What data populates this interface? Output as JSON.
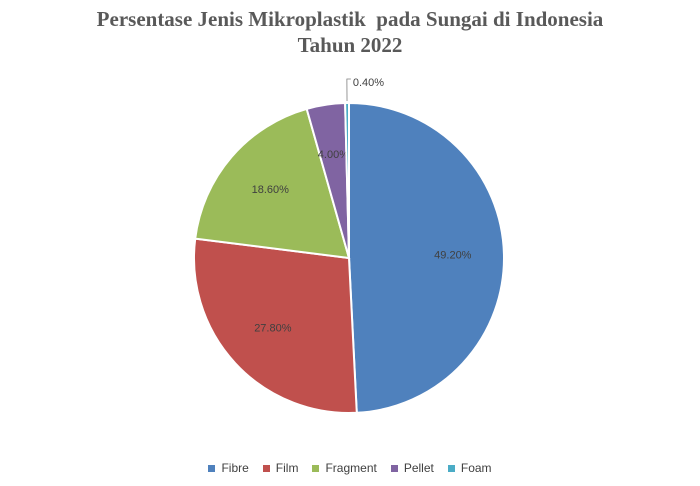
{
  "chart_data": {
    "type": "pie",
    "title": "Persentase Jenis Mikroplastik  pada Sungai di Indonesia",
    "subtitle": "Tahun 2022",
    "categories": [
      "Fibre",
      "Film",
      "Fragment",
      "Pellet",
      "Foam"
    ],
    "values": [
      49.2,
      27.8,
      18.6,
      4.0,
      0.4
    ],
    "labels": [
      "49.20%",
      "27.80%",
      "18.60%",
      "4.00%",
      "0.40%"
    ],
    "colors": [
      "#4F81BD",
      "#C0504D",
      "#9BBB59",
      "#8064A2",
      "#4BACC6"
    ],
    "legend_position": "bottom"
  }
}
